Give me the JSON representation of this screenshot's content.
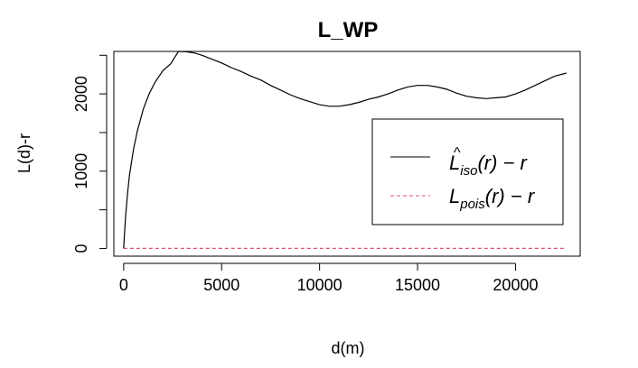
{
  "chart_data": {
    "type": "line",
    "title": "L_WP",
    "xlabel": "d(m)",
    "ylabel": "L(d)-r",
    "xlim": [
      -500,
      23300
    ],
    "ylim": [
      -100,
      2550
    ],
    "x_ticks": [
      0,
      5000,
      10000,
      15000,
      20000
    ],
    "y_ticks": [
      0,
      1000,
      2000
    ],
    "y_minor_ticks": [
      500,
      1500,
      2500
    ],
    "legend_position": "right",
    "grid": false,
    "series": [
      {
        "name": "L̂_iso(r) − r",
        "legend_main": "L",
        "legend_sub": "iso",
        "legend_tail": "(r) − r",
        "legend_hat": "^",
        "color": "#000000",
        "dash": "solid",
        "x": [
          0,
          100,
          200,
          300,
          500,
          700,
          1000,
          1300,
          1600,
          2000,
          2400,
          2800,
          3200,
          3600,
          4000,
          4500,
          5000,
          5500,
          6000,
          6500,
          7000,
          7500,
          8000,
          8500,
          9000,
          9500,
          10000,
          10500,
          11000,
          11500,
          12000,
          12500,
          13000,
          13500,
          14000,
          14500,
          15000,
          15500,
          16000,
          16500,
          17000,
          17500,
          18000,
          18500,
          19000,
          19500,
          20000,
          20500,
          21000,
          21500,
          22000,
          22600
        ],
        "y": [
          0,
          420,
          720,
          950,
          1280,
          1520,
          1800,
          2000,
          2150,
          2300,
          2390,
          2550,
          2545,
          2530,
          2500,
          2450,
          2400,
          2340,
          2290,
          2230,
          2180,
          2110,
          2050,
          1990,
          1940,
          1900,
          1860,
          1840,
          1840,
          1860,
          1890,
          1930,
          1960,
          2000,
          2050,
          2090,
          2110,
          2110,
          2090,
          2060,
          2010,
          1970,
          1950,
          1940,
          1950,
          1960,
          2000,
          2050,
          2110,
          2170,
          2230,
          2270
        ]
      },
      {
        "name": "L_pois(r) − r",
        "legend_main": "L",
        "legend_sub": "pois",
        "legend_tail": "(r) − r",
        "color": "#DF536B",
        "dash": "dashed",
        "x": [
          0,
          22600
        ],
        "y": [
          0,
          0
        ]
      }
    ]
  }
}
